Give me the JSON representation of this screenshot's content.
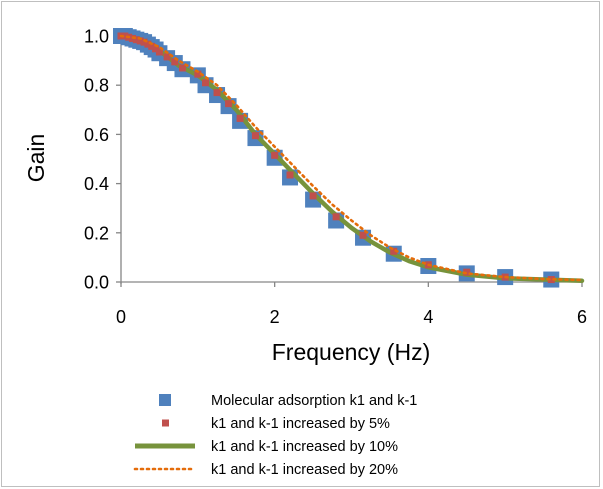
{
  "chart_data": {
    "type": "scatter",
    "title": "",
    "xlabel": "Frequency (Hz)",
    "ylabel": "Gain",
    "xlim": [
      0,
      6
    ],
    "ylim": [
      0,
      1
    ],
    "x_ticks": [
      "0",
      "2",
      "4",
      "6"
    ],
    "y_ticks": [
      "0.0",
      "0.2",
      "0.4",
      "0.6",
      "0.8",
      "1.0"
    ],
    "grid": false,
    "legend_position": "bottom",
    "series": [
      {
        "name": "Molecular adsorption k1 and k-1",
        "style": "square-marker",
        "color": "#4f81bd",
        "x": [
          0.0,
          0.05,
          0.1,
          0.15,
          0.2,
          0.25,
          0.3,
          0.35,
          0.4,
          0.45,
          0.5,
          0.6,
          0.7,
          0.8,
          1.0,
          1.1,
          1.25,
          1.4,
          1.55,
          1.75,
          2.0,
          2.2,
          2.5,
          2.8,
          3.15,
          3.55,
          4.0,
          4.5,
          5.0,
          5.6
        ],
        "y": [
          1.0,
          1.0,
          0.995,
          0.99,
          0.985,
          0.98,
          0.975,
          0.965,
          0.955,
          0.945,
          0.93,
          0.91,
          0.89,
          0.865,
          0.84,
          0.8,
          0.76,
          0.715,
          0.655,
          0.585,
          0.505,
          0.425,
          0.335,
          0.25,
          0.18,
          0.115,
          0.065,
          0.035,
          0.02,
          0.01
        ]
      },
      {
        "name": "k1 and k-1 increased by 5%",
        "style": "small-square-marker",
        "color": "#c0504d",
        "x": [
          0.0,
          0.05,
          0.1,
          0.15,
          0.2,
          0.25,
          0.3,
          0.35,
          0.4,
          0.45,
          0.5,
          0.6,
          0.7,
          0.8,
          1.0,
          1.1,
          1.25,
          1.4,
          1.55,
          1.75,
          2.0,
          2.2,
          2.5,
          2.8,
          3.15,
          3.55,
          4.0,
          4.5,
          5.0,
          5.6
        ],
        "y": [
          1.0,
          1.0,
          0.995,
          0.99,
          0.985,
          0.98,
          0.975,
          0.967,
          0.958,
          0.948,
          0.935,
          0.915,
          0.895,
          0.87,
          0.845,
          0.81,
          0.77,
          0.725,
          0.665,
          0.595,
          0.515,
          0.435,
          0.35,
          0.265,
          0.19,
          0.125,
          0.07,
          0.04,
          0.02,
          0.01
        ]
      },
      {
        "name": "k1 and k-1 increased by 10%",
        "style": "thick-line",
        "color": "#77933c",
        "x": [
          0.0,
          0.25,
          0.5,
          0.75,
          1.0,
          1.25,
          1.5,
          1.75,
          2.0,
          2.25,
          2.5,
          2.75,
          3.0,
          3.25,
          3.5,
          3.75,
          4.0,
          4.5,
          5.0,
          5.5,
          6.0
        ],
        "y": [
          1.0,
          0.985,
          0.94,
          0.88,
          0.84,
          0.78,
          0.7,
          0.6,
          0.52,
          0.44,
          0.36,
          0.285,
          0.22,
          0.165,
          0.12,
          0.085,
          0.06,
          0.03,
          0.015,
          0.01,
          0.005
        ]
      },
      {
        "name": "k1 and k-1 increased by 20%",
        "style": "dotted-line",
        "color": "#e46c0a",
        "x": [
          0.0,
          0.25,
          0.5,
          0.75,
          1.0,
          1.25,
          1.5,
          1.75,
          2.0,
          2.25,
          2.5,
          2.75,
          3.0,
          3.25,
          3.5,
          3.75,
          4.0,
          4.5,
          5.0,
          5.5,
          6.0
        ],
        "y": [
          1.0,
          0.99,
          0.955,
          0.9,
          0.855,
          0.8,
          0.72,
          0.63,
          0.55,
          0.47,
          0.39,
          0.315,
          0.25,
          0.19,
          0.14,
          0.1,
          0.07,
          0.035,
          0.02,
          0.012,
          0.008
        ]
      }
    ]
  }
}
